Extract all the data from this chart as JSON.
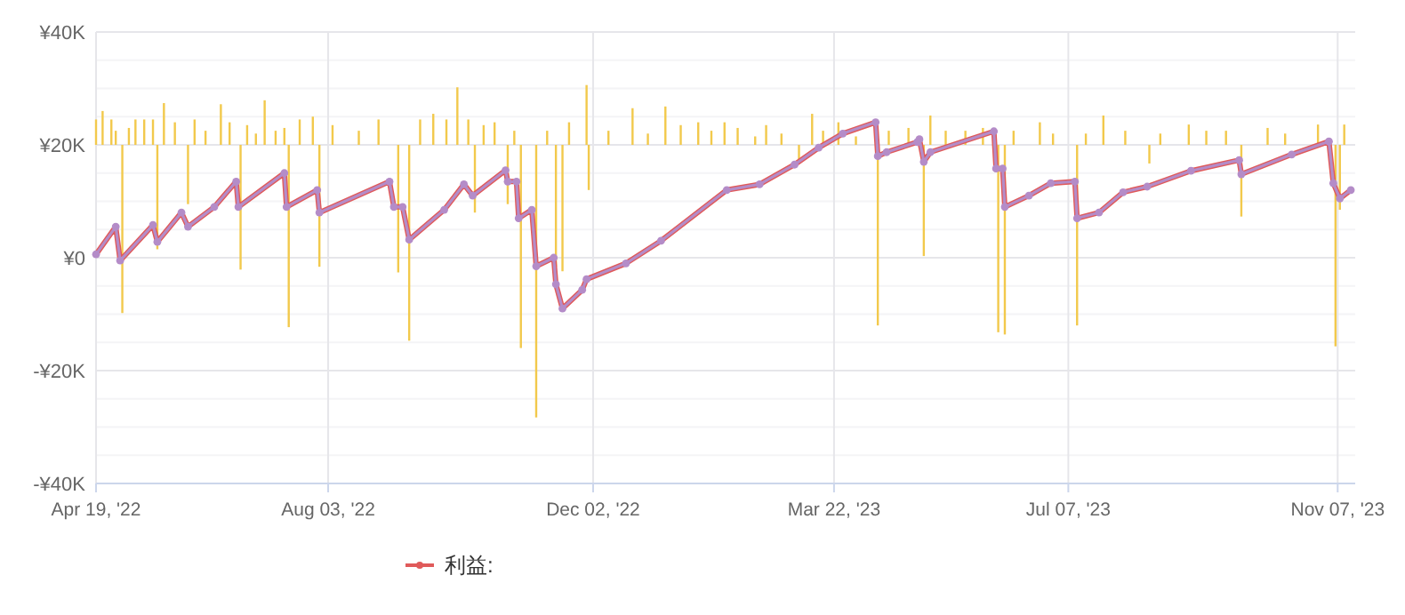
{
  "chart_data": {
    "type": "bar",
    "xlim": [
      "2022-04-19",
      "2023-11-15"
    ],
    "xticks": [
      {
        "value": "2022-04-19",
        "label": "Apr 19, '22"
      },
      {
        "value": "2022-08-03",
        "label": "Aug 03, '22"
      },
      {
        "value": "2022-12-02",
        "label": "Dec 02, '22"
      },
      {
        "value": "2023-03-22",
        "label": "Mar 22, '23"
      },
      {
        "value": "2023-07-07",
        "label": "Jul 07, '23"
      },
      {
        "value": "2023-11-07",
        "label": "Nov 07, '23"
      }
    ],
    "ylim": [
      -40000,
      40000
    ],
    "yticks": [
      {
        "value": -40000,
        "label": "-¥40K"
      },
      {
        "value": -35000,
        "label": null
      },
      {
        "value": -30000,
        "label": null
      },
      {
        "value": -25000,
        "label": null
      },
      {
        "value": -20000,
        "label": "-¥20K"
      },
      {
        "value": -15000,
        "label": null
      },
      {
        "value": -10000,
        "label": null
      },
      {
        "value": -5000,
        "label": null
      },
      {
        "value": 0,
        "label": "¥0"
      },
      {
        "value": 5000,
        "label": null
      },
      {
        "value": 10000,
        "label": null
      },
      {
        "value": 15000,
        "label": null
      },
      {
        "value": 20000,
        "label": "¥20K"
      },
      {
        "value": 25000,
        "label": null
      },
      {
        "value": 30000,
        "label": null
      },
      {
        "value": 35000,
        "label": null
      },
      {
        "value": 40000,
        "label": "¥40K"
      }
    ],
    "grid": true,
    "legend": "bottom",
    "series": [
      {
        "color": "#f2c94c",
        "x": [
          "2022-04-19",
          "2022-04-22",
          "2022-04-26",
          "2022-04-28",
          "2022-05-01",
          "2022-05-04",
          "2022-05-07",
          "2022-05-11",
          "2022-05-15",
          "2022-05-17",
          "2022-05-20",
          "2022-05-25",
          "2022-05-31",
          "2022-06-03",
          "2022-06-08",
          "2022-06-15",
          "2022-06-19",
          "2022-06-24",
          "2022-06-27",
          "2022-07-01",
          "2022-07-05",
          "2022-07-10",
          "2022-07-14",
          "2022-07-16",
          "2022-07-21",
          "2022-07-27",
          "2022-07-30",
          "2022-08-05",
          "2022-08-17",
          "2022-08-26",
          "2022-09-04",
          "2022-09-09",
          "2022-09-14",
          "2022-09-20",
          "2022-09-26",
          "2022-10-01",
          "2022-10-06",
          "2022-10-09",
          "2022-10-13",
          "2022-10-18",
          "2022-10-24",
          "2022-10-27",
          "2022-10-30",
          "2022-11-06",
          "2022-11-11",
          "2022-11-15",
          "2022-11-18",
          "2022-11-21",
          "2022-11-29",
          "2022-11-30",
          "2022-12-09",
          "2022-12-20",
          "2022-12-27",
          "2023-01-04",
          "2023-01-11",
          "2023-01-19",
          "2023-01-25",
          "2023-01-31",
          "2023-02-06",
          "2023-02-14",
          "2023-02-19",
          "2023-02-26",
          "2023-03-06",
          "2023-03-12",
          "2023-03-17",
          "2023-03-24",
          "2023-04-01",
          "2023-04-11",
          "2023-04-16",
          "2023-04-25",
          "2023-05-02",
          "2023-05-05",
          "2023-05-12",
          "2023-05-21",
          "2023-05-29",
          "2023-06-05",
          "2023-06-08",
          "2023-06-12",
          "2023-06-24",
          "2023-06-30",
          "2023-07-11",
          "2023-07-15",
          "2023-07-23",
          "2023-08-02",
          "2023-08-13",
          "2023-08-18",
          "2023-08-31",
          "2023-09-08",
          "2023-09-17",
          "2023-09-24",
          "2023-10-06",
          "2023-10-14",
          "2023-10-29",
          "2023-11-06",
          "2023-11-08",
          "2023-11-10"
        ],
        "values": [
          4500,
          6000,
          4500,
          2500,
          -29800,
          3000,
          4500,
          4500,
          4500,
          -18500,
          7400,
          4000,
          -10500,
          4500,
          2500,
          7200,
          4000,
          -22100,
          3500,
          2000,
          7900,
          2500,
          3000,
          -32300,
          4500,
          5000,
          -21600,
          3500,
          2500,
          4500,
          -22600,
          -34700,
          4500,
          5500,
          4500,
          10200,
          4500,
          -12000,
          3500,
          4000,
          -10500,
          2500,
          -36000,
          -48300,
          2500,
          -21600,
          -22400,
          4000,
          10600,
          -8000,
          2500,
          6500,
          2000,
          6800,
          3500,
          4000,
          2500,
          4000,
          3000,
          1500,
          3500,
          2000,
          -3000,
          5500,
          2500,
          4000,
          1500,
          -32000,
          2500,
          3000,
          -19700,
          5200,
          2500,
          2500,
          3000,
          -33200,
          -33600,
          2500,
          4000,
          2000,
          -32000,
          2000,
          5200,
          2500,
          -3300,
          2000,
          3600,
          2500,
          2500,
          -12700,
          3000,
          2000,
          3600,
          -35700,
          -11500,
          3600
        ],
        "base": [
          20000,
          20000,
          20000,
          20000,
          20000,
          20000,
          20000,
          20000,
          20000,
          20000,
          20000,
          20000,
          20000,
          20000,
          20000,
          20000,
          20000,
          20000,
          20000,
          20000,
          20000,
          20000,
          20000,
          20000,
          20000,
          20000,
          20000,
          20000,
          20000,
          20000,
          20000,
          20000,
          20000,
          20000,
          20000,
          20000,
          20000,
          20000,
          20000,
          20000,
          20000,
          20000,
          20000,
          20000,
          20000,
          20000,
          20000,
          20000,
          20000,
          20000,
          20000,
          20000,
          20000,
          20000,
          20000,
          20000,
          20000,
          20000,
          20000,
          20000,
          20000,
          20000,
          20000,
          20000,
          20000,
          20000,
          20000,
          20000,
          20000,
          20000,
          20000,
          20000,
          20000,
          20000,
          20000,
          20000,
          20000,
          20000,
          20000,
          20000,
          20000,
          20000,
          20000,
          20000,
          20000,
          20000,
          20000,
          20000,
          20000,
          20000,
          20000,
          20000,
          20000,
          20000,
          20000,
          20000
        ]
      },
      {
        "type": "line",
        "name": "利益:",
        "color": "#e05a5a",
        "marker": "circle",
        "x": [
          "2022-04-19",
          "2022-04-28",
          "2022-04-30",
          "2022-05-15",
          "2022-05-17",
          "2022-05-28",
          "2022-05-31",
          "2022-06-12",
          "2022-06-22",
          "2022-06-23",
          "2022-07-14",
          "2022-07-15",
          "2022-07-29",
          "2022-07-30",
          "2022-08-31",
          "2022-09-02",
          "2022-09-06",
          "2022-09-09",
          "2022-09-25",
          "2022-10-04",
          "2022-10-08",
          "2022-10-23",
          "2022-10-24",
          "2022-10-28",
          "2022-10-29",
          "2022-11-04",
          "2022-11-06",
          "2022-11-14",
          "2022-11-15",
          "2022-11-18",
          "2022-11-27",
          "2022-11-29",
          "2022-12-17",
          "2023-01-02",
          "2023-02-01",
          "2023-02-16",
          "2023-03-04",
          "2023-03-15",
          "2023-03-26",
          "2023-04-10",
          "2023-04-11",
          "2023-04-15",
          "2023-04-29",
          "2023-04-30",
          "2023-05-02",
          "2023-05-05",
          "2023-06-03",
          "2023-06-04",
          "2023-06-07",
          "2023-06-08",
          "2023-06-19",
          "2023-06-29",
          "2023-07-10",
          "2023-07-11",
          "2023-07-21",
          "2023-08-01",
          "2023-08-12",
          "2023-09-01",
          "2023-09-23",
          "2023-09-24",
          "2023-10-17",
          "2023-11-03",
          "2023-11-05",
          "2023-11-08",
          "2023-11-13"
        ],
        "values": [
          600,
          5500,
          -500,
          5800,
          2800,
          8000,
          5500,
          9000,
          13500,
          9000,
          15000,
          9000,
          12000,
          8000,
          13500,
          9000,
          9000,
          3200,
          8500,
          13000,
          11000,
          15500,
          13500,
          13500,
          7000,
          8500,
          -1500,
          0,
          -4700,
          -9000,
          -5700,
          -3800,
          -1000,
          3000,
          12000,
          13000,
          16500,
          19500,
          22000,
          24000,
          18000,
          18700,
          20500,
          21000,
          17000,
          18700,
          22400,
          15800,
          15800,
          9000,
          11000,
          13200,
          13500,
          7000,
          8000,
          11600,
          12600,
          15400,
          17300,
          14800,
          18300,
          20600,
          13200,
          10500,
          12000
        ]
      },
      {
        "type": "line",
        "color": "#b48cc8",
        "marker": "circle",
        "x": [
          "2022-04-19",
          "2022-04-28",
          "2022-04-30",
          "2022-05-15",
          "2022-05-17",
          "2022-05-28",
          "2022-05-31",
          "2022-06-12",
          "2022-06-22",
          "2022-06-23",
          "2022-07-14",
          "2022-07-15",
          "2022-07-29",
          "2022-07-30",
          "2022-08-31",
          "2022-09-02",
          "2022-09-06",
          "2022-09-09",
          "2022-09-25",
          "2022-10-04",
          "2022-10-08",
          "2022-10-23",
          "2022-10-24",
          "2022-10-28",
          "2022-10-29",
          "2022-11-04",
          "2022-11-06",
          "2022-11-14",
          "2022-11-15",
          "2022-11-18",
          "2022-11-27",
          "2022-11-29",
          "2022-12-17",
          "2023-01-02",
          "2023-02-01",
          "2023-02-16",
          "2023-03-04",
          "2023-03-15",
          "2023-03-26",
          "2023-04-10",
          "2023-04-11",
          "2023-04-15",
          "2023-04-29",
          "2023-04-30",
          "2023-05-02",
          "2023-05-05",
          "2023-06-03",
          "2023-06-04",
          "2023-06-07",
          "2023-06-08",
          "2023-06-19",
          "2023-06-29",
          "2023-07-10",
          "2023-07-11",
          "2023-07-21",
          "2023-08-01",
          "2023-08-12",
          "2023-09-01",
          "2023-09-23",
          "2023-09-24",
          "2023-10-17",
          "2023-11-03",
          "2023-11-05",
          "2023-11-08",
          "2023-11-13"
        ],
        "values": [
          600,
          5500,
          -500,
          5800,
          2800,
          8000,
          5500,
          9000,
          13500,
          9000,
          15000,
          9000,
          12000,
          8000,
          13500,
          9000,
          9000,
          3200,
          8500,
          13000,
          11000,
          15500,
          13500,
          13500,
          7000,
          8500,
          -1500,
          0,
          -4700,
          -9000,
          -5700,
          -3800,
          -1000,
          3000,
          12000,
          13000,
          16500,
          19500,
          22000,
          24000,
          18000,
          18700,
          20500,
          21000,
          17000,
          18700,
          22400,
          15800,
          15800,
          9000,
          11000,
          13200,
          13500,
          7000,
          8000,
          11600,
          12600,
          15400,
          17300,
          14800,
          18300,
          20600,
          13200,
          10500,
          12000
        ]
      }
    ]
  }
}
